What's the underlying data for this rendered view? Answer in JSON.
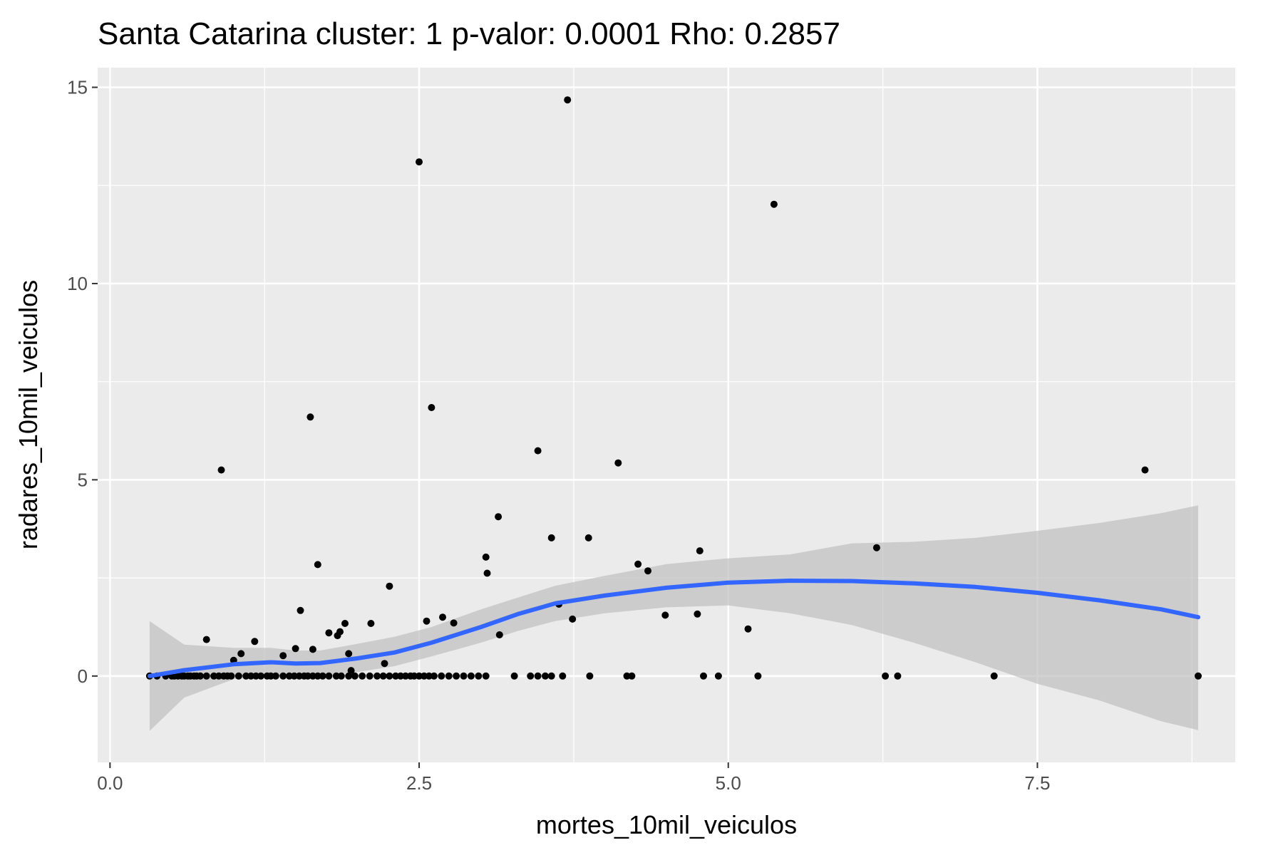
{
  "chart_data": {
    "type": "scatter",
    "title": "Santa Catarina cluster: 1 p-valor: 0.0001 Rho: 0.2857",
    "xlabel": "mortes_10mil_veiculos",
    "ylabel": "radares_10mil_veiculos",
    "xlim": [
      -0.1,
      9.1
    ],
    "ylim": [
      -2.2,
      15.5
    ],
    "x_ticks": [
      0,
      2.5,
      5,
      7.5
    ],
    "x_tick_labels": [
      "0.0",
      "2.5",
      "5.0",
      "7.5"
    ],
    "y_ticks": [
      0,
      5,
      10,
      15
    ],
    "y_tick_labels": [
      "0",
      "5",
      "10",
      "15"
    ],
    "grid": true,
    "colors": {
      "panel": "#ebebeb",
      "grid": "#ffffff",
      "points": "#000000",
      "smooth_line": "#3366ff",
      "confidence_band": "#bfbfbf"
    },
    "points": [
      [
        0.32,
        0
      ],
      [
        0.38,
        0
      ],
      [
        0.45,
        0
      ],
      [
        0.5,
        0
      ],
      [
        0.52,
        0
      ],
      [
        0.55,
        0
      ],
      [
        0.58,
        0
      ],
      [
        0.6,
        0
      ],
      [
        0.63,
        0
      ],
      [
        0.65,
        0
      ],
      [
        0.68,
        0
      ],
      [
        0.7,
        0
      ],
      [
        0.73,
        0
      ],
      [
        0.78,
        0
      ],
      [
        0.84,
        0
      ],
      [
        0.88,
        0
      ],
      [
        0.92,
        0
      ],
      [
        0.95,
        0
      ],
      [
        0.98,
        0
      ],
      [
        1.04,
        0
      ],
      [
        1.1,
        0
      ],
      [
        1.14,
        0
      ],
      [
        1.18,
        0
      ],
      [
        1.22,
        0
      ],
      [
        1.27,
        0
      ],
      [
        1.3,
        0
      ],
      [
        1.34,
        0
      ],
      [
        1.4,
        0
      ],
      [
        1.45,
        0
      ],
      [
        1.49,
        0
      ],
      [
        1.53,
        0
      ],
      [
        1.57,
        0
      ],
      [
        1.6,
        0
      ],
      [
        1.64,
        0
      ],
      [
        1.68,
        0
      ],
      [
        1.72,
        0
      ],
      [
        1.77,
        0
      ],
      [
        1.83,
        0
      ],
      [
        1.87,
        0
      ],
      [
        1.93,
        0
      ],
      [
        1.98,
        0
      ],
      [
        2.04,
        0
      ],
      [
        2.1,
        0
      ],
      [
        2.16,
        0
      ],
      [
        2.21,
        0
      ],
      [
        2.26,
        0
      ],
      [
        2.31,
        0
      ],
      [
        2.35,
        0
      ],
      [
        2.39,
        0
      ],
      [
        2.43,
        0
      ],
      [
        2.46,
        0
      ],
      [
        2.5,
        0
      ],
      [
        2.54,
        0
      ],
      [
        2.58,
        0
      ],
      [
        2.62,
        0
      ],
      [
        2.68,
        0
      ],
      [
        2.74,
        0
      ],
      [
        2.8,
        0
      ],
      [
        2.86,
        0
      ],
      [
        2.92,
        0
      ],
      [
        2.98,
        0
      ],
      [
        3.04,
        0
      ],
      [
        3.27,
        0
      ],
      [
        3.4,
        0
      ],
      [
        3.46,
        0
      ],
      [
        3.52,
        0
      ],
      [
        3.57,
        0
      ],
      [
        3.66,
        0
      ],
      [
        3.88,
        0
      ],
      [
        4.18,
        0
      ],
      [
        4.22,
        0
      ],
      [
        4.8,
        0
      ],
      [
        4.92,
        0
      ],
      [
        5.24,
        0
      ],
      [
        6.27,
        0
      ],
      [
        6.37,
        0
      ],
      [
        7.15,
        0
      ],
      [
        8.8,
        0
      ],
      [
        0.78,
        0.93
      ],
      [
        0.9,
        5.25
      ],
      [
        1.0,
        0.4
      ],
      [
        1.06,
        0.57
      ],
      [
        1.17,
        0.88
      ],
      [
        1.4,
        0.52
      ],
      [
        1.5,
        0.7
      ],
      [
        1.54,
        1.67
      ],
      [
        1.62,
        6.6
      ],
      [
        1.64,
        0.68
      ],
      [
        1.68,
        2.84
      ],
      [
        1.77,
        1.1
      ],
      [
        1.84,
        1.03
      ],
      [
        1.86,
        1.13
      ],
      [
        1.9,
        1.34
      ],
      [
        1.93,
        0.57
      ],
      [
        1.95,
        0.14
      ],
      [
        2.11,
        1.34
      ],
      [
        2.22,
        0.32
      ],
      [
        2.26,
        2.29
      ],
      [
        2.5,
        13.1
      ],
      [
        2.56,
        1.4
      ],
      [
        2.6,
        6.84
      ],
      [
        2.69,
        1.5
      ],
      [
        2.78,
        1.35
      ],
      [
        3.04,
        3.03
      ],
      [
        3.05,
        2.62
      ],
      [
        3.14,
        4.06
      ],
      [
        3.15,
        1.05
      ],
      [
        3.46,
        5.74
      ],
      [
        3.57,
        3.52
      ],
      [
        3.7,
        14.68
      ],
      [
        3.63,
        1.83
      ],
      [
        3.74,
        1.45
      ],
      [
        3.87,
        3.52
      ],
      [
        4.11,
        5.43
      ],
      [
        4.27,
        2.85
      ],
      [
        4.35,
        2.68
      ],
      [
        4.49,
        1.55
      ],
      [
        4.75,
        1.58
      ],
      [
        4.77,
        3.19
      ],
      [
        5.16,
        1.2
      ],
      [
        5.37,
        12.02
      ],
      [
        6.2,
        3.27
      ],
      [
        8.37,
        5.25
      ]
    ],
    "smooth": {
      "method": "loess",
      "x": [
        0.32,
        0.6,
        1.0,
        1.3,
        1.5,
        1.7,
        2.0,
        2.3,
        2.6,
        3.0,
        3.3,
        3.6,
        4.0,
        4.5,
        5.0,
        5.5,
        6.0,
        6.5,
        7.0,
        7.5,
        8.0,
        8.5,
        8.8
      ],
      "y": [
        0.0,
        0.15,
        0.3,
        0.35,
        0.32,
        0.33,
        0.45,
        0.6,
        0.85,
        1.25,
        1.58,
        1.85,
        2.05,
        2.25,
        2.38,
        2.43,
        2.42,
        2.36,
        2.27,
        2.12,
        1.93,
        1.7,
        1.5
      ],
      "lower": [
        -1.4,
        -0.55,
        -0.08,
        0.0,
        0.0,
        0.02,
        0.1,
        0.25,
        0.5,
        0.85,
        1.15,
        1.4,
        1.6,
        1.75,
        1.8,
        1.6,
        1.3,
        0.85,
        0.35,
        -0.2,
        -0.62,
        -1.15,
        -1.38
      ],
      "upper": [
        1.4,
        0.8,
        0.72,
        0.72,
        0.65,
        0.65,
        0.82,
        1.0,
        1.25,
        1.7,
        2.0,
        2.3,
        2.55,
        2.85,
        3.0,
        3.1,
        3.38,
        3.42,
        3.52,
        3.7,
        3.9,
        4.15,
        4.35
      ]
    }
  }
}
